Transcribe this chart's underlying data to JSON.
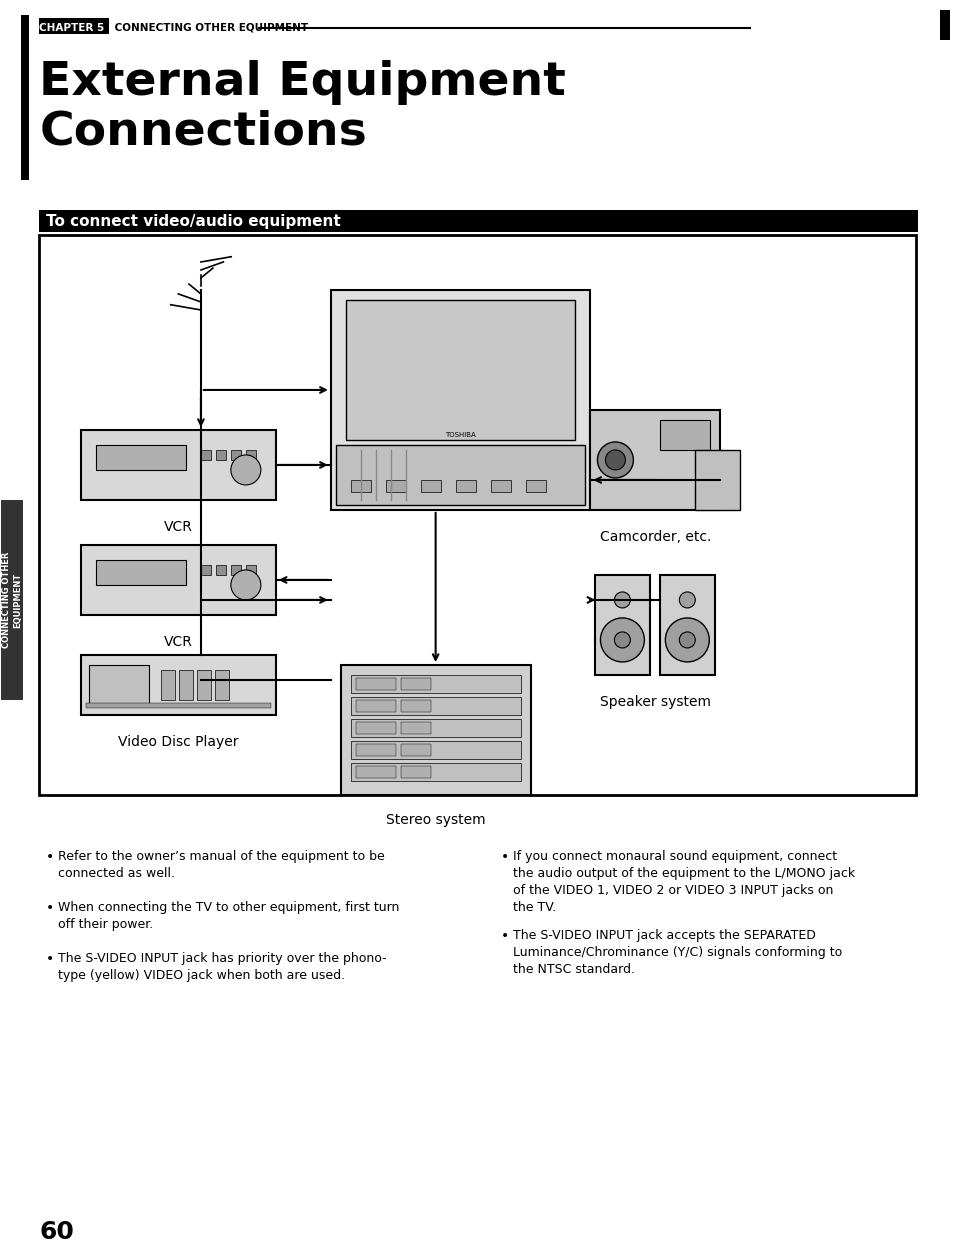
{
  "bg_color": "#ffffff",
  "page_num": "60",
  "chapter_label": "CHAPTER 5",
  "chapter_text": " CONNECTING OTHER EQUIPMENT",
  "title_line1": "External Equipment",
  "title_line2": "Connections",
  "section_header": "To connect video/audio equipment",
  "bullet_points_left": [
    "Refer to the owner’s manual of the equipment to be\nconnected as well.",
    "When connecting the TV to other equipment, first turn\noff their power.",
    "The S-VIDEO INPUT jack has priority over the phono-\ntype (yellow) VIDEO jack when both are used."
  ],
  "bullet_points_right": [
    "If you connect monaural sound equipment, connect\nthe audio output of the equipment to the L/MONO jack\nof the VIDEO 1, VIDEO 2 or VIDEO 3 INPUT jacks on\nthe TV.",
    "The S-VIDEO INPUT jack accepts the SEPARATED\nLuminance/Chrominance (Y/C) signals conforming to\nthe NTSC standard."
  ],
  "labels": {
    "vcr1": "VCR",
    "vcr2": "VCR",
    "vdp": "Video Disc Player",
    "camcorder": "Camcorder, etc.",
    "speaker": "Speaker system",
    "stereo": "Stereo system"
  },
  "sidebar_text": "CONNECTING OTHER\nEQUIPMENT",
  "left_bar_color": "#000000",
  "section_header_bg": "#000000",
  "section_header_fg": "#ffffff"
}
